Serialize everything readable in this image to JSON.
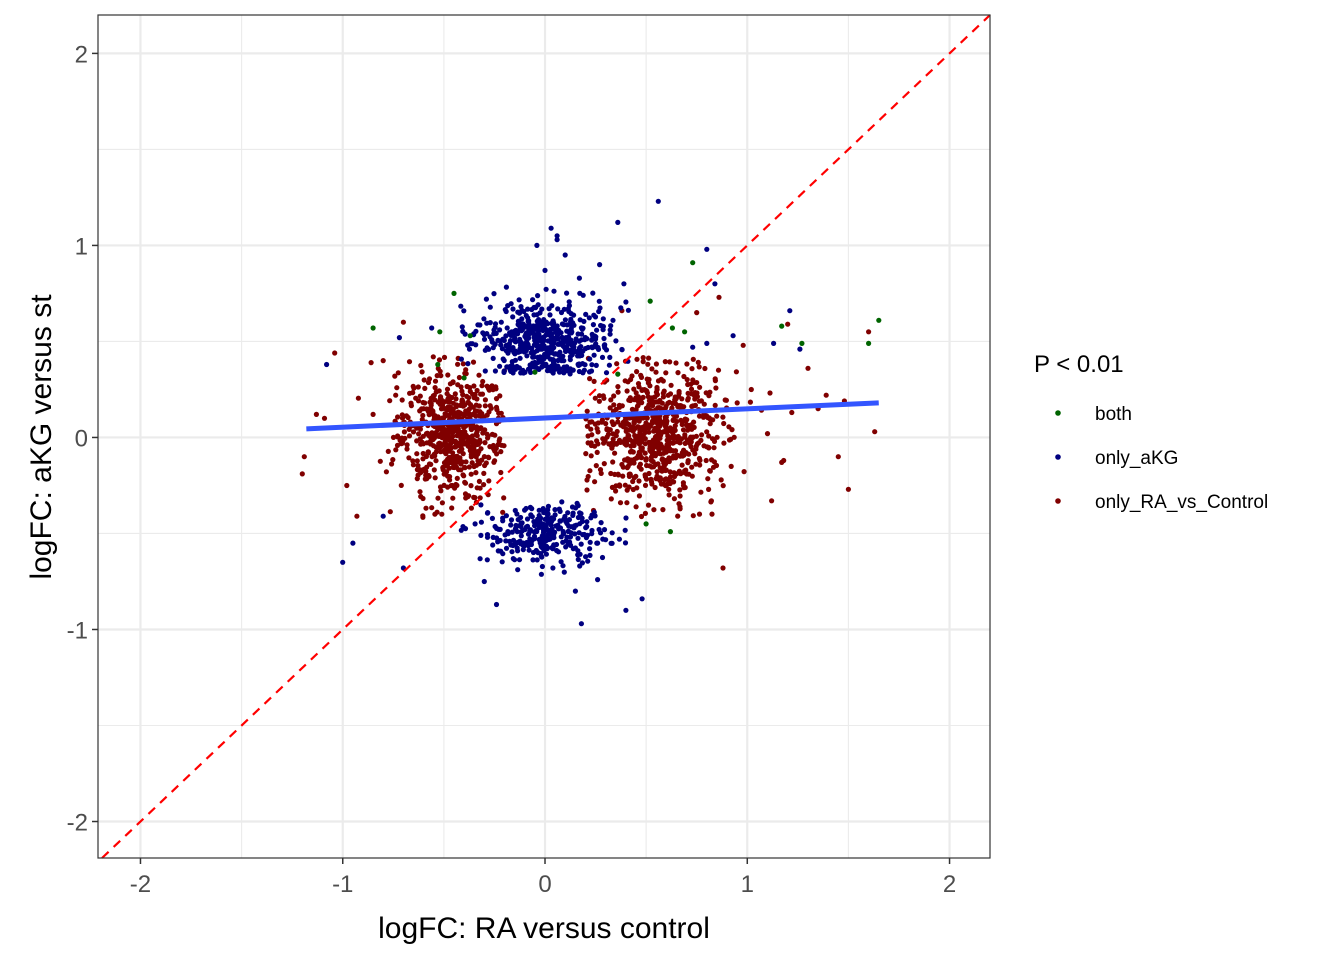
{
  "chart_data": {
    "type": "scatter",
    "title": "",
    "xlabel": "logFC: RA versus control",
    "ylabel": "logFC: aKG versus st",
    "xlim": [
      -2.21,
      2.2
    ],
    "ylim": [
      -2.19,
      2.2
    ],
    "x_ticks": [
      -2,
      -1,
      0,
      1,
      2
    ],
    "y_ticks": [
      -2,
      -1,
      0,
      1,
      2
    ],
    "x_tick_labels": [
      "-2",
      "-1",
      "0",
      "1",
      "2"
    ],
    "y_tick_labels": [
      "-2",
      "-1",
      "0",
      "1",
      "2"
    ],
    "grid": true,
    "legend": {
      "title": "P < 0.01",
      "position": "right",
      "entries": [
        {
          "label": "both",
          "color": "#006400"
        },
        {
          "label": "only_aKG",
          "color": "#000080"
        },
        {
          "label": "only_RA_vs_Control",
          "color": "#800000"
        }
      ]
    },
    "reference_line": {
      "type": "identity",
      "slope": 1,
      "intercept": 0,
      "color": "#ff0000",
      "style": "dashed"
    },
    "fit_line": {
      "x": [
        -1.18,
        1.65
      ],
      "y": [
        0.045,
        0.18
      ],
      "color": "#3355ff"
    },
    "series": [
      {
        "name": "both",
        "color": "#006400",
        "points": [
          [
            -0.85,
            0.57
          ],
          [
            -0.45,
            0.75
          ],
          [
            -0.52,
            0.55
          ],
          [
            -0.37,
            0.53
          ],
          [
            -0.53,
            0.38
          ],
          [
            0.52,
            0.71
          ],
          [
            0.73,
            0.91
          ],
          [
            0.63,
            0.57
          ],
          [
            0.69,
            0.55
          ],
          [
            1.17,
            0.58
          ],
          [
            1.27,
            0.49
          ],
          [
            1.6,
            0.49
          ],
          [
            1.65,
            0.61
          ],
          [
            0.5,
            -0.45
          ],
          [
            0.62,
            -0.49
          ],
          [
            -0.05,
            0.34
          ],
          [
            -0.4,
            0.31
          ],
          [
            0.36,
            0.33
          ]
        ]
      },
      {
        "name": "only_aKG",
        "color": "#000080",
        "clusters": [
          {
            "center": [
              0.0,
              0.5
            ],
            "spread": [
              0.17,
              0.1
            ],
            "count": 520
          },
          {
            "center": [
              0.0,
              -0.5
            ],
            "spread": [
              0.16,
              0.08
            ],
            "count": 300
          }
        ],
        "points": [
          [
            0.56,
            1.23
          ],
          [
            0.36,
            1.12
          ],
          [
            0.03,
            1.09
          ],
          [
            0.06,
            1.05
          ],
          [
            -0.04,
            1.0
          ],
          [
            0.17,
            0.83
          ],
          [
            0.8,
            0.98
          ],
          [
            0.84,
            0.8
          ],
          [
            0.1,
            0.95
          ],
          [
            0.06,
            1.03
          ],
          [
            0.0,
            0.87
          ],
          [
            0.27,
            0.9
          ],
          [
            0.39,
            0.8
          ],
          [
            1.21,
            0.66
          ],
          [
            1.13,
            0.49
          ],
          [
            -1.08,
            0.38
          ],
          [
            -0.72,
            0.52
          ],
          [
            -0.56,
            0.57
          ],
          [
            -0.8,
            -0.41
          ],
          [
            -0.95,
            -0.55
          ],
          [
            -1.0,
            -0.65
          ],
          [
            -0.7,
            -0.68
          ],
          [
            0.18,
            -0.97
          ],
          [
            -0.24,
            -0.87
          ],
          [
            0.48,
            -0.84
          ],
          [
            0.4,
            -0.9
          ],
          [
            -0.3,
            -0.75
          ],
          [
            0.15,
            -0.8
          ],
          [
            0.26,
            -0.74
          ],
          [
            1.26,
            0.46
          ],
          [
            0.93,
            0.53
          ],
          [
            0.8,
            0.49
          ],
          [
            0.73,
            0.47
          ]
        ]
      },
      {
        "name": "only_RA_vs_Control",
        "color": "#800000",
        "clusters": [
          {
            "center": [
              -0.47,
              0.02
            ],
            "spread": [
              0.13,
              0.16
            ],
            "count": 620
          },
          {
            "center": [
              0.55,
              0.02
            ],
            "spread": [
              0.16,
              0.17
            ],
            "count": 720
          }
        ],
        "points": [
          [
            -1.2,
            -0.19
          ],
          [
            -1.19,
            -0.1
          ],
          [
            -1.13,
            0.12
          ],
          [
            -1.09,
            0.1
          ],
          [
            -1.04,
            0.44
          ],
          [
            -0.98,
            -0.25
          ],
          [
            -0.93,
            -0.41
          ],
          [
            -0.85,
            0.12
          ],
          [
            -0.86,
            0.39
          ],
          [
            -0.8,
            0.4
          ],
          [
            -0.7,
            0.6
          ],
          [
            1.5,
            -0.27
          ],
          [
            1.45,
            -0.1
          ],
          [
            1.6,
            0.55
          ],
          [
            1.63,
            0.03
          ],
          [
            1.48,
            0.19
          ],
          [
            1.39,
            0.22
          ],
          [
            1.35,
            0.15
          ],
          [
            1.2,
            0.59
          ],
          [
            1.3,
            0.36
          ],
          [
            1.1,
            0.02
          ],
          [
            1.12,
            -0.33
          ],
          [
            1.17,
            -0.13
          ],
          [
            0.88,
            -0.68
          ],
          [
            0.38,
            0.66
          ],
          [
            0.75,
            0.65
          ],
          [
            0.86,
            0.73
          ],
          [
            0.98,
            0.48
          ],
          [
            1.18,
            -0.12
          ],
          [
            1.22,
            0.13
          ],
          [
            1.02,
            0.25
          ],
          [
            0.95,
            0.18
          ]
        ]
      }
    ]
  }
}
